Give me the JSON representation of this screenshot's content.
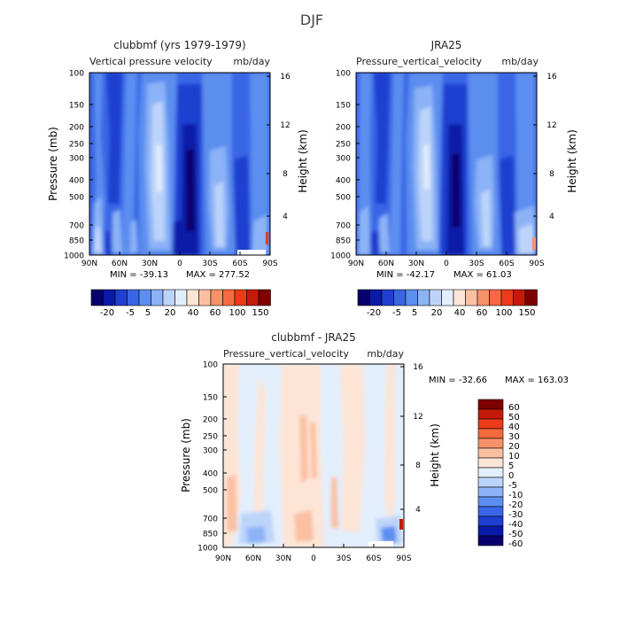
{
  "figure": {
    "title": "DJF"
  },
  "chart_data": [
    {
      "type": "heatmap",
      "title": "clubbmf (yrs 1979-1979)",
      "subtitle_left": "Vertical pressure velocity",
      "subtitle_right": "mb/day",
      "ylabel": "Pressure (mb)",
      "ylabel_right": "Height (km)",
      "x_ticks": [
        "90N",
        "60N",
        "30N",
        "0",
        "30S",
        "60S",
        "90S"
      ],
      "y_ticks": [
        "100",
        "150",
        "200",
        "250",
        "300",
        "400",
        "500",
        "700",
        "850",
        "1000"
      ],
      "y_right_ticks": [
        "4",
        "8",
        "12",
        "16"
      ],
      "min_label": "MIN = -39.13",
      "max_label": "MAX = 277.52",
      "colorbar_labels": [
        "-20",
        "-5",
        "5",
        "20",
        "40",
        "60",
        "100",
        "150"
      ]
    },
    {
      "type": "heatmap",
      "title": "JRA25",
      "subtitle_left": "Pressure_vertical_velocity",
      "subtitle_right": "mb/day",
      "ylabel_right": "Height (km)",
      "x_ticks": [
        "90N",
        "60N",
        "30N",
        "0",
        "30S",
        "60S",
        "90S"
      ],
      "y_ticks": [
        "100",
        "150",
        "200",
        "250",
        "300",
        "400",
        "500",
        "700",
        "850",
        "1000"
      ],
      "y_right_ticks": [
        "4",
        "8",
        "12",
        "16"
      ],
      "min_label": "MIN = -42.17",
      "max_label": "MAX = 61.03",
      "colorbar_labels": [
        "-20",
        "-5",
        "5",
        "20",
        "40",
        "60",
        "100",
        "150"
      ]
    },
    {
      "type": "heatmap",
      "title": "clubbmf - JRA25",
      "subtitle_left": "Pressure_vertical_velocity",
      "subtitle_right": "mb/day",
      "ylabel": "Pressure (mb)",
      "ylabel_right": "Height (km)",
      "x_ticks": [
        "90N",
        "60N",
        "30N",
        "0",
        "30S",
        "60S",
        "90S"
      ],
      "y_ticks": [
        "100",
        "150",
        "200",
        "250",
        "300",
        "400",
        "500",
        "700",
        "850",
        "1000"
      ],
      "y_right_ticks": [
        "4",
        "8",
        "12",
        "16"
      ],
      "min_label": "MIN = -32.66",
      "max_label": "MAX = 163.03",
      "colorbar_labels": [
        "60",
        "50",
        "40",
        "30",
        "20",
        "10",
        "5",
        "0",
        "-5",
        "-10",
        "-20",
        "-30",
        "-40",
        "-50",
        "-60"
      ]
    }
  ],
  "colors": {
    "main_scale": [
      "#08006e",
      "#0a1aa8",
      "#1e3fd0",
      "#3a66e6",
      "#5b8ef0",
      "#8cb3f6",
      "#bdd4fa",
      "#e3eefc",
      "#fde5d6",
      "#fbc0a2",
      "#f7916a",
      "#f56a3e",
      "#ec3a1a",
      "#c41a0a",
      "#7d0000"
    ],
    "diff_scale": [
      "#7d0000",
      "#c41a0a",
      "#ec3a1a",
      "#f56a3e",
      "#f7916a",
      "#fbc0a2",
      "#fde5d6",
      "#e3eefc",
      "#bdd4fa",
      "#8cb3f6",
      "#5b8ef0",
      "#3a66e6",
      "#1e3fd0",
      "#0a1aa8",
      "#08006e"
    ]
  }
}
